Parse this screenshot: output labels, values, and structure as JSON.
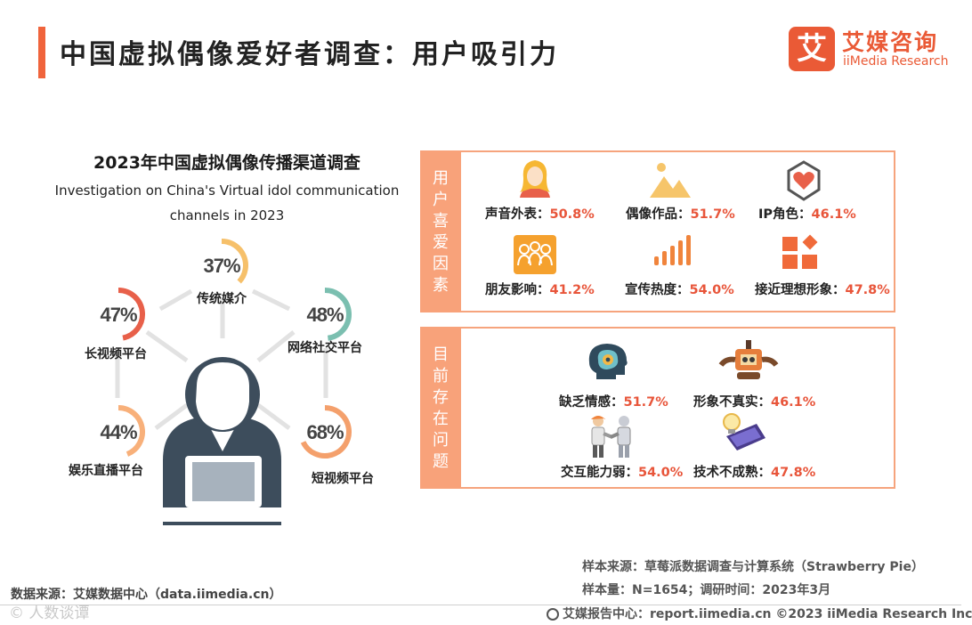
{
  "header": {
    "title": "中国虚拟偶像爱好者调查：用户吸引力",
    "logo_mark": "艾",
    "logo_cn": "艾媒咨询",
    "logo_en": "iiMedia Research"
  },
  "chart_data": {
    "type": "radial-percentage",
    "title": "2023年中国虚拟偶像传播渠道调查",
    "subtitle_line1": "Investigation on China's Virtual idol communication",
    "subtitle_line2": "channels in 2023",
    "unit": "%",
    "categories": [
      "传统媒介",
      "网络社交平台",
      "短视频平台",
      "娱乐直播平台",
      "长视频平台"
    ],
    "values": [
      37,
      48,
      68,
      44,
      47
    ],
    "display": [
      "37%",
      "48%",
      "68%",
      "44%",
      "47%"
    ],
    "colors": [
      "#f6c06a",
      "#7bbfb0",
      "#f4a06c",
      "#f8b07a",
      "#e8604a"
    ]
  },
  "factors": {
    "tab_chars": [
      "用",
      "户",
      "喜",
      "爱",
      "因",
      "素"
    ],
    "items": [
      {
        "label": "声音外表：",
        "value": "50.8%",
        "icon": "singer-icon"
      },
      {
        "label": "偶像作品：",
        "value": "51.7%",
        "icon": "mountain-picture-icon"
      },
      {
        "label": "IP角色：",
        "value": "46.1%",
        "icon": "heart-shield-icon"
      },
      {
        "label": "朋友影响：",
        "value": "41.2%",
        "icon": "friends-group-icon"
      },
      {
        "label": "宣传热度：",
        "value": "54.0%",
        "icon": "signal-bars-icon"
      },
      {
        "label": "接近理想形象：",
        "value": "47.8%",
        "icon": "shapes-icon"
      }
    ]
  },
  "issues": {
    "tab_chars": [
      "目",
      "前",
      "存",
      "在",
      "问",
      "题"
    ],
    "items": [
      {
        "label": "缺乏情感：",
        "value": "51.7%",
        "icon": "brain-gear-icon"
      },
      {
        "label": "形象不真实：",
        "value": "46.1%",
        "icon": "robot-icon"
      },
      {
        "label": "交互能力弱：",
        "value": "54.0%",
        "icon": "handshake-robot-icon"
      },
      {
        "label": "技术不成熟：",
        "value": "47.8%",
        "icon": "bulb-laptop-icon"
      }
    ]
  },
  "footer": {
    "source_left": "数据来源：艾媒数据中心（data.iimedia.cn）",
    "watermark": "© 人数谈谭",
    "sample_source": "样本来源：草莓派数据调查与计算系统（Strawberry Pie）",
    "sample_size": "样本量：N=1654；调研时间：2023年3月",
    "report_center": "艾媒报告中心：report.iimedia.cn   ©2023  iiMedia Research  Inc"
  }
}
